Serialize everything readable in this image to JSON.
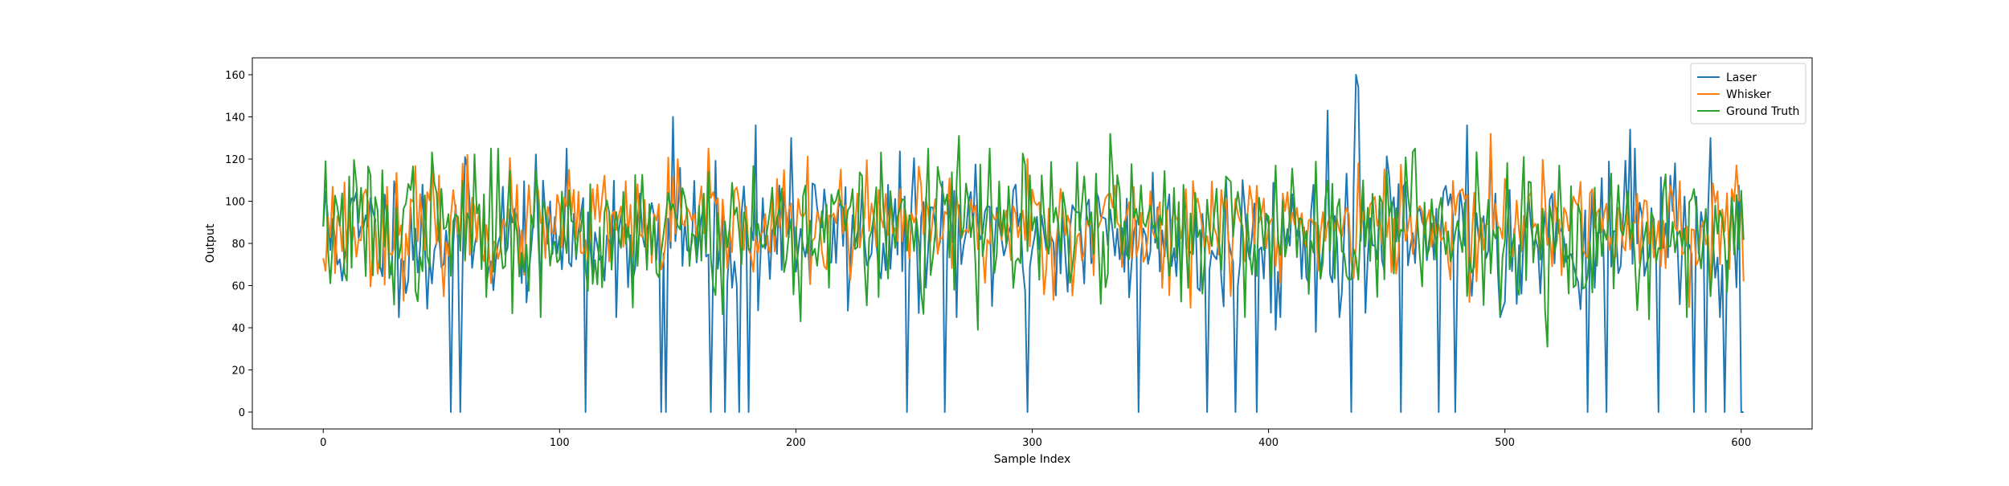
{
  "chart_data": {
    "type": "line",
    "title": "",
    "xlabel": "Sample Index",
    "ylabel": "Output",
    "xlim": [
      -30,
      630
    ],
    "ylim": [
      -8,
      168
    ],
    "xticks": [
      0,
      100,
      200,
      300,
      400,
      500,
      600
    ],
    "yticks": [
      0,
      20,
      40,
      60,
      80,
      100,
      120,
      140,
      160
    ],
    "grid": false,
    "legend_position": "top-right",
    "n_samples": 602,
    "series": [
      {
        "name": "Laser",
        "color": "#1f77b4",
        "mean": 84,
        "spread": 16,
        "seed": 11,
        "dropouts_to_zero_at": [
          54,
          58,
          111,
          143,
          145,
          164,
          170,
          176,
          180,
          247,
          263,
          298,
          345,
          374,
          386,
          395,
          435,
          456,
          472,
          479,
          535,
          543,
          565,
          580,
          585,
          593,
          600,
          601
        ],
        "notable_points": [
          [
            0,
            88
          ],
          [
            2,
            92
          ],
          [
            44,
            49
          ],
          [
            148,
            140
          ],
          [
            183,
            136
          ],
          [
            198,
            130
          ],
          [
            437,
            160
          ],
          [
            438,
            154
          ],
          [
            425,
            143
          ],
          [
            484,
            136
          ],
          [
            494,
            128
          ],
          [
            553,
            134
          ],
          [
            587,
            130
          ],
          [
            420,
            38
          ],
          [
            403,
            39
          ],
          [
            498,
            45
          ]
        ]
      },
      {
        "name": "Whisker",
        "color": "#ff7f0e",
        "mean": 88,
        "spread": 13,
        "seed": 23,
        "notable_points": [
          [
            0,
            73
          ],
          [
            1,
            67
          ],
          [
            61,
            122
          ],
          [
            150,
            120
          ],
          [
            298,
            120
          ],
          [
            438,
            118
          ],
          [
            494,
            132
          ],
          [
            598,
            117
          ],
          [
            601,
            62
          ]
        ]
      },
      {
        "name": "Ground Truth",
        "color": "#2ca02c",
        "mean": 87,
        "spread": 17,
        "seed": 37,
        "notable_points": [
          [
            0,
            88
          ],
          [
            92,
            45
          ],
          [
            202,
            43
          ],
          [
            269,
            131
          ],
          [
            277,
            39
          ],
          [
            333,
            132
          ],
          [
            518,
            31
          ],
          [
            498,
            46
          ],
          [
            561,
            44
          ],
          [
            600,
            105
          ]
        ]
      }
    ]
  }
}
